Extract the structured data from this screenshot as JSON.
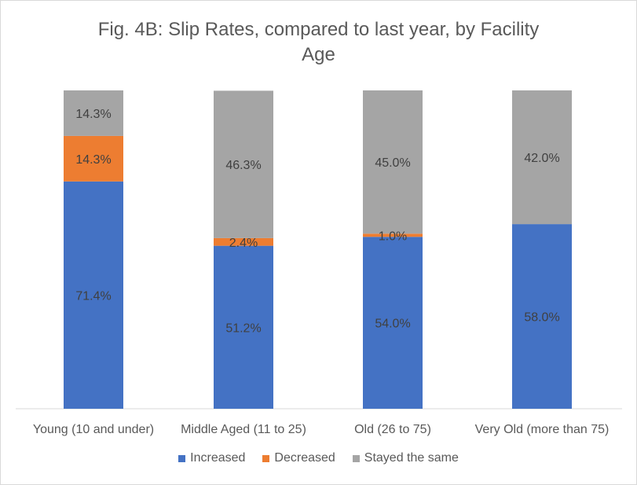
{
  "chart_data": {
    "type": "bar",
    "stacked": true,
    "normalized": true,
    "title_lines": [
      "Fig. 4B: Slip Rates, compared to last year, by Facility",
      "Age"
    ],
    "categories": [
      "Young (10 and under)",
      "Middle Aged (11 to 25)",
      "Old (26 to 75)",
      "Very Old (more than 75)"
    ],
    "series": [
      {
        "name": "Increased",
        "color": "#4472c4",
        "values": [
          71.4,
          51.2,
          54.0,
          58.0
        ],
        "labels": [
          "71.4%",
          "51.2%",
          "54.0%",
          "58.0%"
        ]
      },
      {
        "name": "Decreased",
        "color": "#ed7d31",
        "values": [
          14.3,
          2.4,
          1.0,
          0.0
        ],
        "labels": [
          "14.3%",
          "2.4%",
          "1.0%",
          ""
        ]
      },
      {
        "name": "Stayed the same",
        "color": "#a5a5a5",
        "values": [
          14.3,
          46.3,
          45.0,
          42.0
        ],
        "labels": [
          "14.3%",
          "46.3%",
          "45.0%",
          "42.0%"
        ]
      }
    ],
    "ylim": [
      0,
      100
    ],
    "legend_position": "bottom",
    "grid": false
  }
}
